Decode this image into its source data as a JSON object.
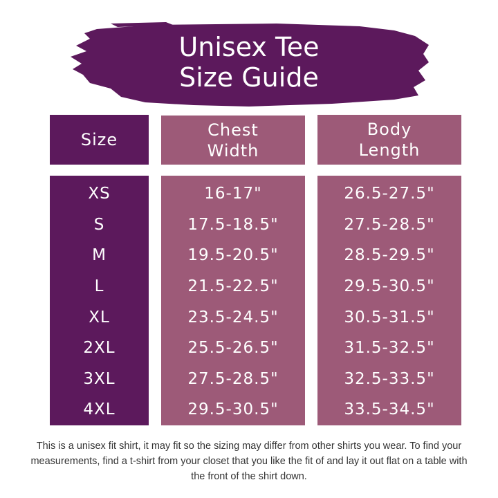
{
  "title": {
    "line1": "Unisex Tee",
    "line2": "Size Guide"
  },
  "colors": {
    "dark_purple": "#5c195c",
    "mauve": "#9d5a78",
    "text": "#ffffff"
  },
  "table": {
    "headers": [
      {
        "line1": "Size",
        "line2": ""
      },
      {
        "line1": "Chest",
        "line2": "Width"
      },
      {
        "line1": "Body",
        "line2": "Length"
      }
    ],
    "sizes": [
      "XS",
      "S",
      "M",
      "L",
      "XL",
      "2XL",
      "3XL",
      "4XL"
    ],
    "chest_width": [
      "16-17\"",
      "17.5-18.5\"",
      "19.5-20.5\"",
      "21.5-22.5\"",
      "23.5-24.5\"",
      "25.5-26.5\"",
      "27.5-28.5\"",
      "29.5-30.5\""
    ],
    "body_length": [
      "26.5-27.5\"",
      "27.5-28.5\"",
      "28.5-29.5\"",
      "29.5-30.5\"",
      "30.5-31.5\"",
      "31.5-32.5\"",
      "32.5-33.5\"",
      "33.5-34.5\""
    ]
  },
  "note": "This is a unisex fit shirt, it may fit so the sizing may differ from other shirts you wear. To find your measurements, find a t-shirt from your closet that you like the fit of and lay it out flat on a table with the front of the shirt down."
}
